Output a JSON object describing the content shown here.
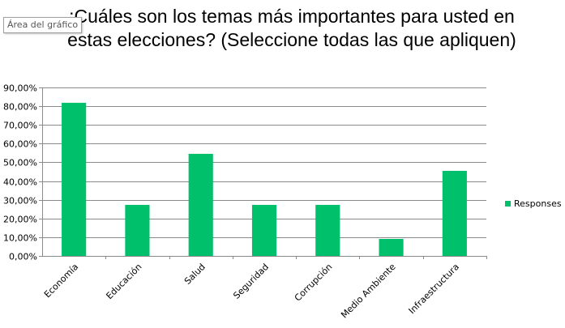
{
  "tooltip": "Área del gráfico",
  "chart_data": {
    "type": "bar",
    "title": "¿Cuáles son los temas más importantes para usted en estas elecciones? (Seleccione todas las que apliquen)",
    "title_visible": ":Cuáles son los temas más importantes para usted en estas elecciones? (Seleccione todas las que apliquen)",
    "categories": [
      "Economía",
      "Educación",
      "Salud",
      "Seguridad",
      "Corrupción",
      "Medio Ambiente",
      "Infraestructura"
    ],
    "series": [
      {
        "name": "Responses",
        "values": [
          0.8182,
          0.2727,
          0.5455,
          0.2727,
          0.2727,
          0.0909,
          0.4545
        ]
      }
    ],
    "ylim": [
      0,
      0.9
    ],
    "yticks": [
      "0,00%",
      "10,00%",
      "20,00%",
      "30,00%",
      "40,00%",
      "50,00%",
      "60,00%",
      "70,00%",
      "80,00%",
      "90,00%"
    ],
    "grid": true,
    "legend_position": "right",
    "bar_color": "#00C06B"
  }
}
